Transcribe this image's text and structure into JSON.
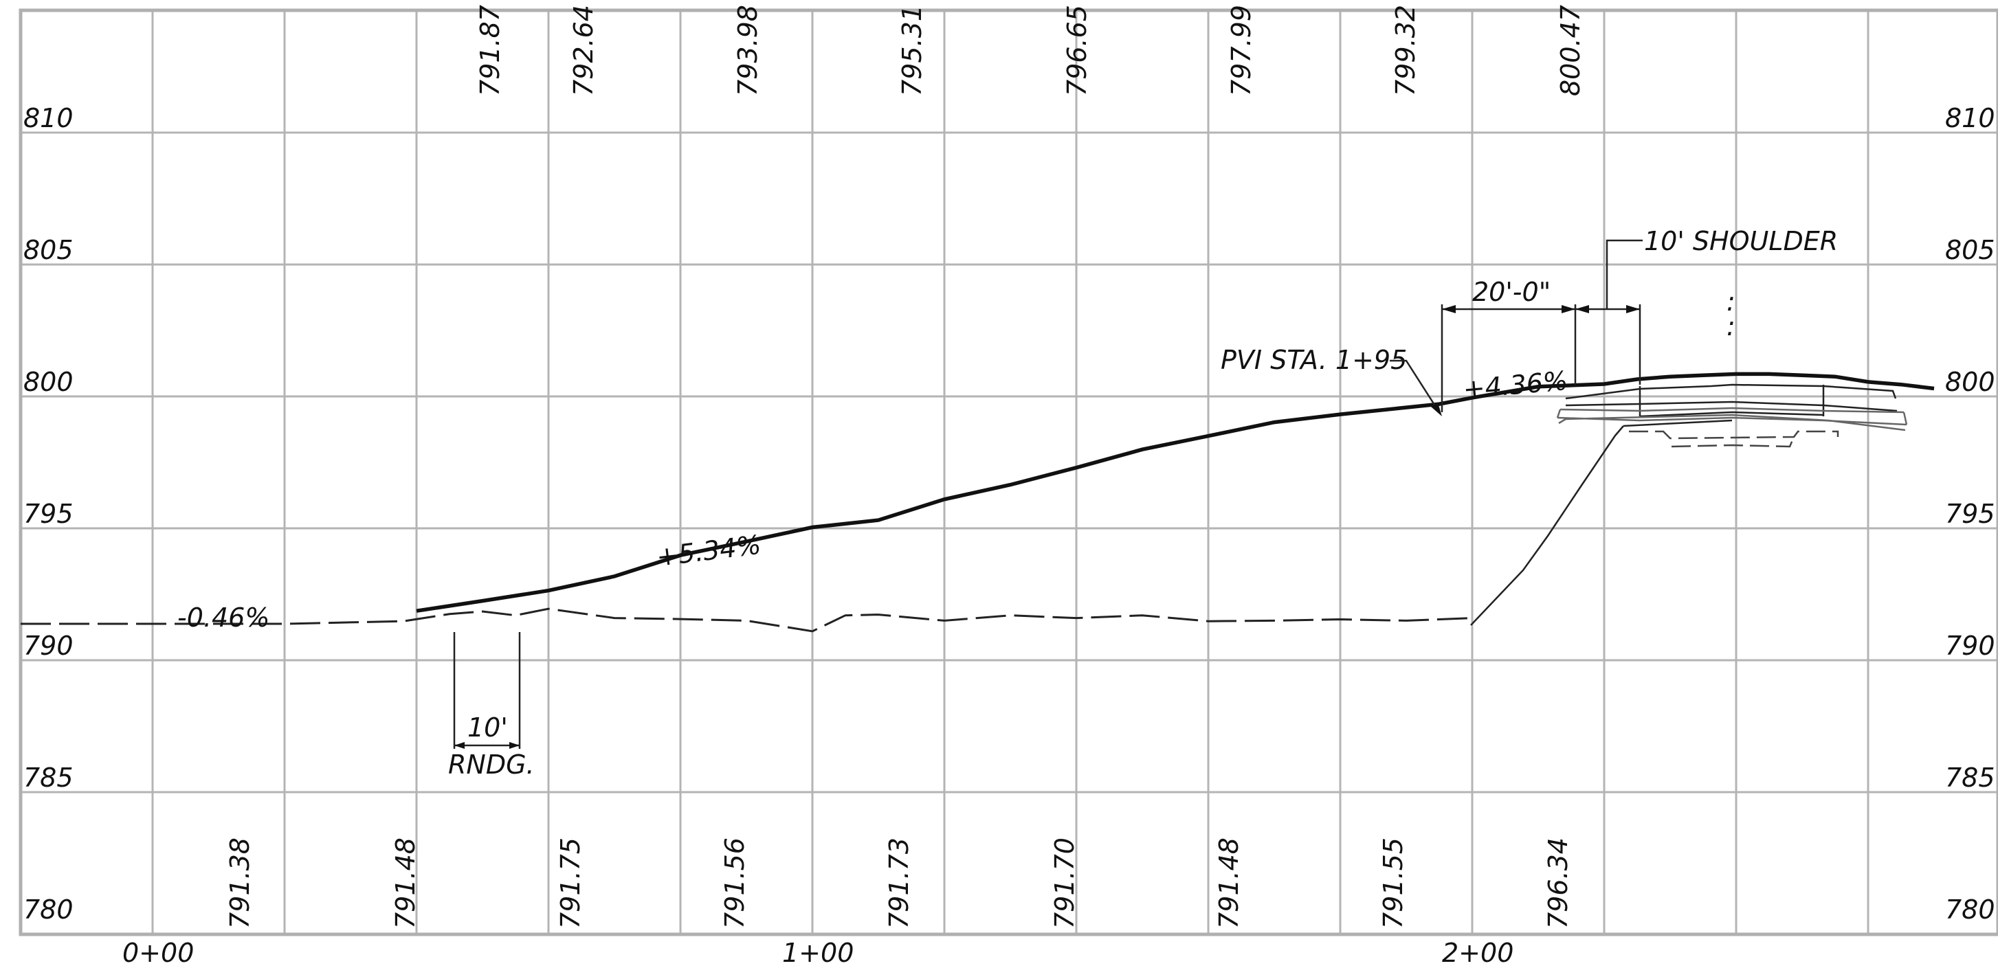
{
  "chart_data": {
    "type": "line",
    "x_axis": {
      "ticks": [
        "0+00",
        "1+00",
        "2+00"
      ],
      "range": [
        -20,
        270
      ]
    },
    "y_axis": {
      "range": [
        780,
        815
      ],
      "left_ticks": [
        "810",
        "805",
        "800",
        "795",
        "790",
        "785",
        "780"
      ],
      "right_ticks": [
        "810",
        "805",
        "800",
        "795",
        "790",
        "785",
        "780"
      ]
    },
    "grid": true,
    "series": [
      {
        "style": "dashed",
        "x": [
          -20,
          0,
          20,
          38,
          45,
          50,
          55,
          60,
          70,
          80,
          90,
          100,
          105,
          110,
          120,
          130,
          140,
          150,
          160,
          170,
          180,
          190,
          200
        ],
        "y": [
          791.38,
          791.38,
          791.38,
          791.48,
          791.75,
          791.85,
          791.7,
          791.95,
          791.6,
          791.56,
          791.5,
          791.1,
          791.7,
          791.73,
          791.5,
          791.7,
          791.6,
          791.7,
          791.48,
          791.5,
          791.55,
          791.5,
          791.6
        ]
      },
      {
        "style": "solid",
        "x": [
          40,
          50,
          60,
          70,
          80,
          90,
          100,
          110,
          120,
          130,
          140,
          150,
          160,
          170,
          180,
          190,
          195,
          200,
          210,
          220,
          225,
          230,
          235,
          240,
          245,
          250,
          255,
          260,
          265,
          270
        ],
        "y": [
          791.87,
          792.25,
          792.64,
          793.18,
          793.98,
          794.5,
          795.04,
          795.31,
          796.1,
          796.65,
          797.3,
          797.99,
          798.5,
          799.02,
          799.32,
          799.58,
          799.71,
          799.95,
          800.37,
          800.47,
          800.65,
          800.75,
          800.8,
          800.85,
          800.85,
          800.8,
          800.75,
          800.55,
          800.45,
          800.3
        ]
      }
    ],
    "upper_elevation_labels": [
      "791.87",
      "792.64",
      "793.98",
      "795.31",
      "796.65",
      "797.99",
      "799.32",
      "800.47"
    ],
    "lower_elevation_labels": [
      "791.38",
      "791.48",
      "791.75",
      "791.56",
      "791.73",
      "791.70",
      "791.48",
      "791.55",
      "796.34"
    ],
    "annotations": {
      "existing_grade": "-0.46%",
      "grade_up": "+5.34%",
      "grade_top": "+4.36%",
      "pvi": "PVI STA. 1+95",
      "rounding_length": "10'",
      "rounding_label": "RNDG.",
      "dimension": "20'-0\"",
      "shoulder": "10' SHOULDER"
    }
  }
}
